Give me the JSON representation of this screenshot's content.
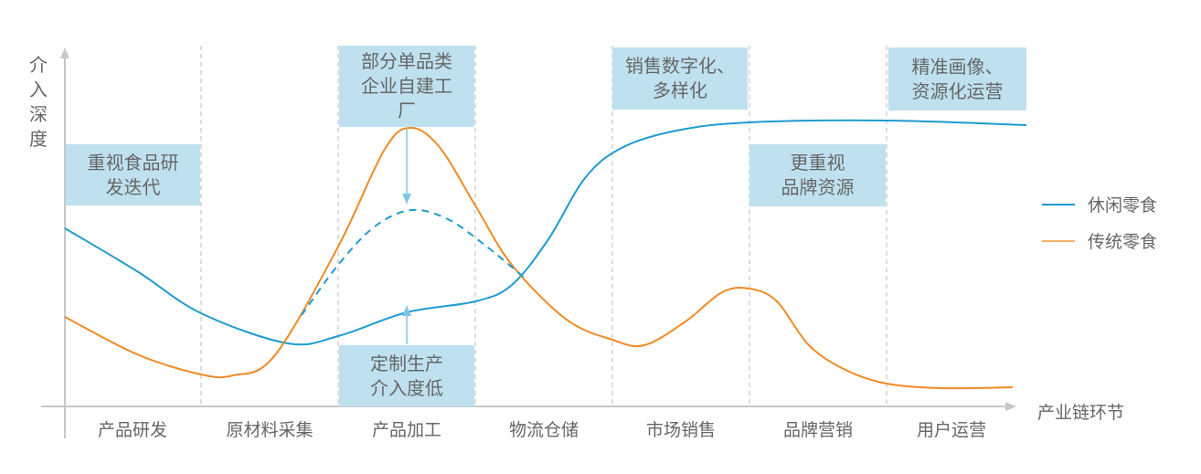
{
  "axes": {
    "y_label": "介入深度",
    "x_label": "产业链环节"
  },
  "stages": [
    "产品研发",
    "原材料采集",
    "产品加工",
    "物流仓储",
    "市场销售",
    "品牌营销",
    "用户运营"
  ],
  "annotations": {
    "rd": "重视食品研\n发迭代",
    "factory": "部分单品类\n企业自建工\n厂",
    "custom": "定制生产\n介入度低",
    "sales": "销售数字化、\n多样化",
    "brand": "更重视\n品牌资源",
    "user": "精准画像、\n资源化运营"
  },
  "legend": [
    {
      "name": "休闲零食",
      "color": "#1f9bd1"
    },
    {
      "name": "传统零食",
      "color": "#f08a24"
    }
  ],
  "colors": {
    "box": "#bfe1ef",
    "axis": "#c8c8c8",
    "arrow": "#7cc6e6"
  }
}
